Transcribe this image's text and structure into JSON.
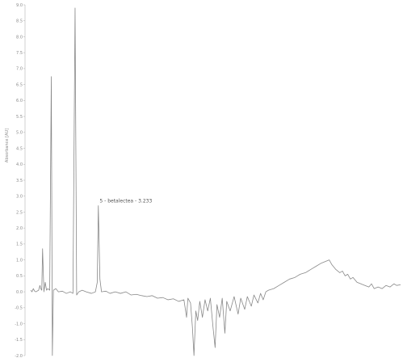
{
  "chart_data": {
    "type": "line",
    "ylabel": "Absorbance [AU]",
    "ylim": [
      -2.0,
      9.0
    ],
    "yticks": [
      {
        "value": 9.0,
        "label": "9.0"
      },
      {
        "value": 8.5,
        "label": "8.5"
      },
      {
        "value": 8.0,
        "label": "8.0"
      },
      {
        "value": 7.5,
        "label": "7.5"
      },
      {
        "value": 7.0,
        "label": "7.0"
      },
      {
        "value": 6.5,
        "label": "6.5"
      },
      {
        "value": 6.0,
        "label": "6.0"
      },
      {
        "value": 5.5,
        "label": "5.5"
      },
      {
        "value": 5.0,
        "label": "5.0"
      },
      {
        "value": 4.5,
        "label": "4.5"
      },
      {
        "value": 4.0,
        "label": "4.0"
      },
      {
        "value": 3.5,
        "label": "3.5"
      },
      {
        "value": 3.0,
        "label": "3.0"
      },
      {
        "value": 2.5,
        "label": "2.5"
      },
      {
        "value": 2.0,
        "label": "2.0"
      },
      {
        "value": 1.5,
        "label": "1.5"
      },
      {
        "value": 1.0,
        "label": "1.0"
      },
      {
        "value": 0.5,
        "label": "0.5"
      },
      {
        "value": 0.0,
        "label": "0.0"
      },
      {
        "value": -0.5,
        "label": "-0.5"
      },
      {
        "value": -1.0,
        "label": "-1.0"
      },
      {
        "value": -1.5,
        "label": "-1.5"
      },
      {
        "value": -2.0,
        "label": "-2.0"
      }
    ],
    "xlim": [
      0,
      14
    ],
    "grid": false,
    "annotation": {
      "text": "5 - betalectea - 3.233",
      "x": 2.55,
      "y": 2.7
    },
    "series": [
      {
        "color": "#888888",
        "points": [
          [
            0.0,
            0.05
          ],
          [
            0.05,
            0.0
          ],
          [
            0.1,
            0.1
          ],
          [
            0.15,
            0.02
          ],
          [
            0.2,
            0.0
          ],
          [
            0.3,
            0.05
          ],
          [
            0.35,
            0.2
          ],
          [
            0.38,
            0.1
          ],
          [
            0.42,
            0.05
          ],
          [
            0.45,
            1.35
          ],
          [
            0.5,
            0.0
          ],
          [
            0.55,
            0.3
          ],
          [
            0.6,
            0.05
          ],
          [
            0.65,
            0.1
          ],
          [
            0.72,
            0.05
          ],
          [
            0.78,
            6.75
          ],
          [
            0.82,
            -2.0
          ],
          [
            0.86,
            0.05
          ],
          [
            0.95,
            0.1
          ],
          [
            1.05,
            0.0
          ],
          [
            1.2,
            0.02
          ],
          [
            1.35,
            -0.05
          ],
          [
            1.5,
            0.0
          ],
          [
            1.6,
            -0.05
          ],
          [
            1.68,
            8.9
          ],
          [
            1.74,
            -0.1
          ],
          [
            1.82,
            0.0
          ],
          [
            1.95,
            0.05
          ],
          [
            2.1,
            0.0
          ],
          [
            2.3,
            -0.05
          ],
          [
            2.45,
            0.0
          ],
          [
            2.52,
            0.3
          ],
          [
            2.56,
            2.7
          ],
          [
            2.62,
            0.4
          ],
          [
            2.68,
            0.0
          ],
          [
            2.85,
            0.02
          ],
          [
            3.0,
            -0.05
          ],
          [
            3.2,
            0.0
          ],
          [
            3.4,
            -0.05
          ],
          [
            3.6,
            0.0
          ],
          [
            3.8,
            -0.1
          ],
          [
            4.0,
            -0.08
          ],
          [
            4.2,
            -0.12
          ],
          [
            4.4,
            -0.15
          ],
          [
            4.6,
            -0.12
          ],
          [
            4.8,
            -0.2
          ],
          [
            5.0,
            -0.18
          ],
          [
            5.2,
            -0.25
          ],
          [
            5.4,
            -0.22
          ],
          [
            5.6,
            -0.3
          ],
          [
            5.8,
            -0.25
          ],
          [
            5.9,
            -0.8
          ],
          [
            5.95,
            -0.2
          ],
          [
            6.05,
            -0.35
          ],
          [
            6.12,
            -1.1
          ],
          [
            6.18,
            -2.0
          ],
          [
            6.25,
            -0.6
          ],
          [
            6.32,
            -0.9
          ],
          [
            6.4,
            -0.3
          ],
          [
            6.5,
            -0.8
          ],
          [
            6.6,
            -0.25
          ],
          [
            6.7,
            -0.6
          ],
          [
            6.8,
            -0.2
          ],
          [
            6.9,
            -1.1
          ],
          [
            6.98,
            -1.75
          ],
          [
            7.05,
            -0.4
          ],
          [
            7.15,
            -0.8
          ],
          [
            7.25,
            -0.2
          ],
          [
            7.35,
            -1.3
          ],
          [
            7.42,
            -0.3
          ],
          [
            7.55,
            -0.6
          ],
          [
            7.7,
            -0.15
          ],
          [
            7.85,
            -0.7
          ],
          [
            7.95,
            -0.2
          ],
          [
            8.1,
            -0.55
          ],
          [
            8.2,
            -0.15
          ],
          [
            8.35,
            -0.45
          ],
          [
            8.45,
            -0.1
          ],
          [
            8.6,
            -0.35
          ],
          [
            8.7,
            -0.05
          ],
          [
            8.8,
            -0.25
          ],
          [
            8.9,
            0.0
          ],
          [
            9.0,
            0.05
          ],
          [
            9.2,
            0.1
          ],
          [
            9.4,
            0.2
          ],
          [
            9.6,
            0.3
          ],
          [
            9.8,
            0.4
          ],
          [
            10.0,
            0.45
          ],
          [
            10.2,
            0.55
          ],
          [
            10.4,
            0.6
          ],
          [
            10.6,
            0.7
          ],
          [
            10.8,
            0.8
          ],
          [
            11.0,
            0.9
          ],
          [
            11.15,
            0.95
          ],
          [
            11.3,
            1.0
          ],
          [
            11.4,
            0.85
          ],
          [
            11.55,
            0.7
          ],
          [
            11.7,
            0.6
          ],
          [
            11.8,
            0.65
          ],
          [
            11.9,
            0.5
          ],
          [
            12.0,
            0.55
          ],
          [
            12.1,
            0.4
          ],
          [
            12.2,
            0.45
          ],
          [
            12.35,
            0.3
          ],
          [
            12.5,
            0.25
          ],
          [
            12.65,
            0.2
          ],
          [
            12.8,
            0.15
          ],
          [
            12.9,
            0.25
          ],
          [
            13.0,
            0.1
          ],
          [
            13.15,
            0.15
          ],
          [
            13.3,
            0.1
          ],
          [
            13.45,
            0.2
          ],
          [
            13.6,
            0.15
          ],
          [
            13.75,
            0.25
          ],
          [
            13.85,
            0.2
          ],
          [
            14.0,
            0.22
          ]
        ]
      }
    ]
  }
}
